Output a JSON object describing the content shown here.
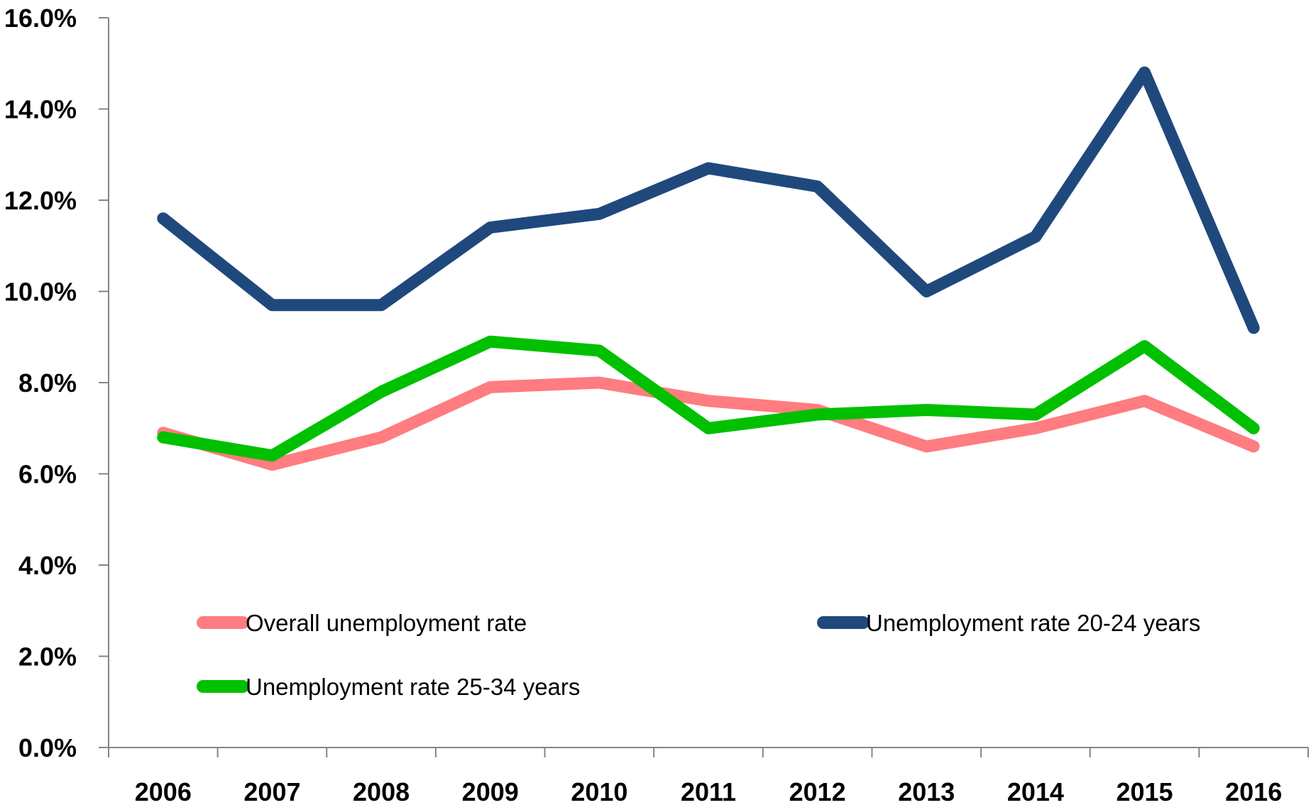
{
  "chart_data": {
    "type": "line",
    "x": [
      "2006",
      "2007",
      "2008",
      "2009",
      "2010",
      "2011",
      "2012",
      "2013",
      "2014",
      "2015",
      "2016"
    ],
    "ylim": [
      0,
      16
    ],
    "yticks": [
      "0.0%",
      "2.0%",
      "4.0%",
      "6.0%",
      "8.0%",
      "10.0%",
      "12.0%",
      "14.0%",
      "16.0%"
    ],
    "grid": false,
    "legend_placement": "inside-bottom",
    "series": [
      {
        "name": "Overall unemployment rate",
        "color": "#FF7C80",
        "values": [
          6.9,
          6.2,
          6.8,
          7.9,
          8.0,
          7.6,
          7.4,
          6.6,
          7.0,
          7.6,
          6.6
        ]
      },
      {
        "name": "Unemployment rate 20-24 years",
        "color": "#1F497D",
        "values": [
          11.6,
          9.7,
          9.7,
          11.4,
          11.7,
          12.7,
          12.3,
          10.0,
          11.2,
          14.8,
          9.2
        ]
      },
      {
        "name": "Unemployment rate 25-34 years",
        "color": "#00C000",
        "values": [
          6.8,
          6.4,
          7.8,
          8.9,
          8.7,
          7.0,
          7.3,
          7.4,
          7.3,
          8.8,
          7.0
        ]
      }
    ]
  }
}
